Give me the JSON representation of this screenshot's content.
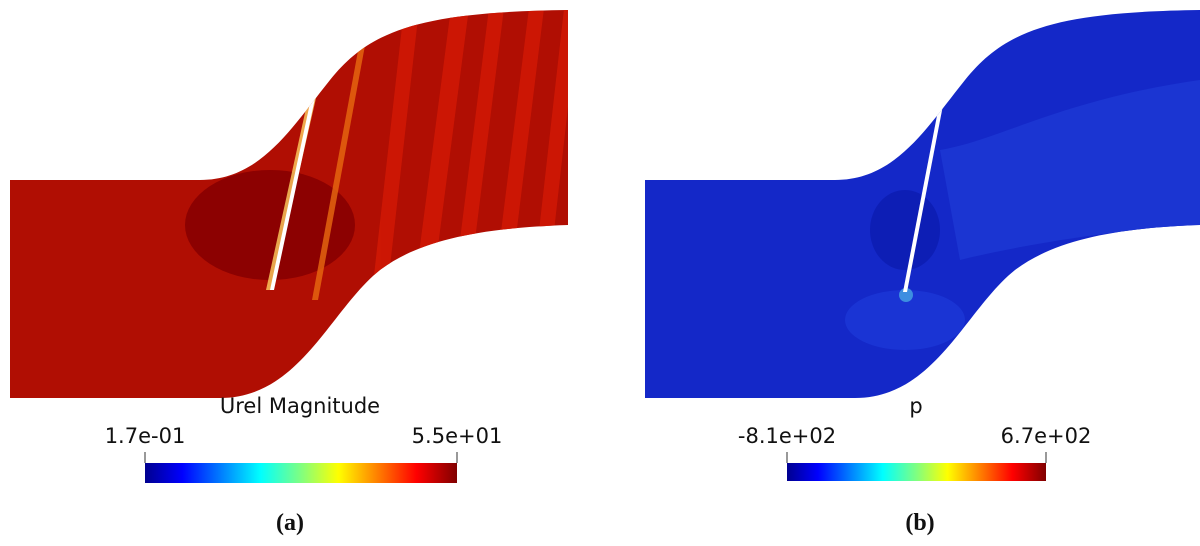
{
  "panels": [
    {
      "label": "(a)",
      "colorbar": {
        "title": "Urel Magnitude",
        "min": "1.7e-01",
        "max": "5.5e+01"
      }
    },
    {
      "label": "(b)",
      "colorbar": {
        "title": "p",
        "min": "-8.1e+02",
        "max": "6.7e+02"
      }
    }
  ]
}
